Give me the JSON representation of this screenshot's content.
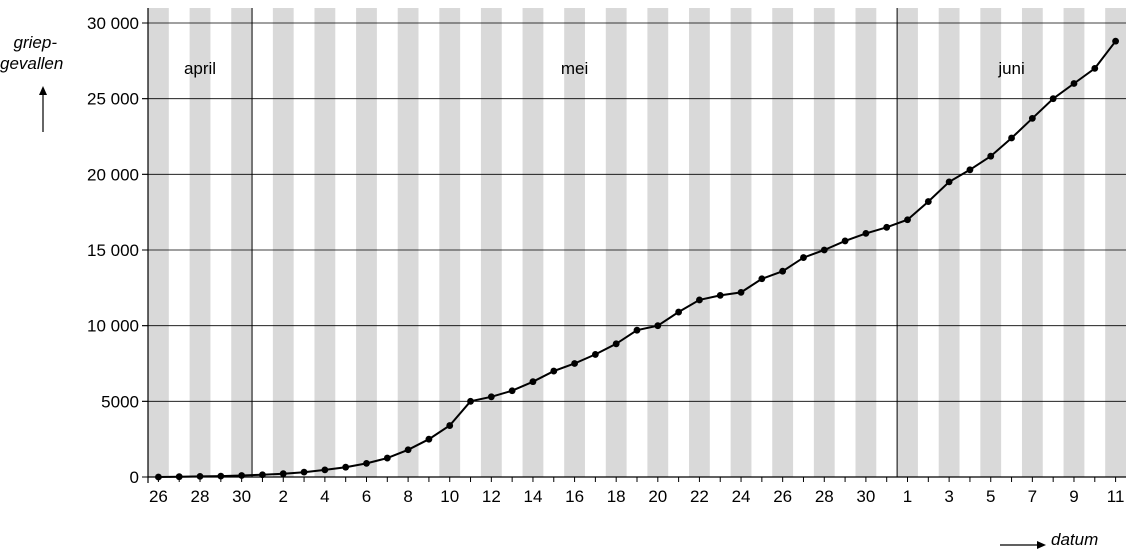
{
  "chart_data": {
    "type": "line",
    "ylabel": "griep-gevallen",
    "ylabel_line1": "griep-",
    "ylabel_line2": "gevallen",
    "xlabel": "datum",
    "ylim": [
      0,
      30000
    ],
    "yticks": [
      0,
      5000,
      10000,
      15000,
      20000,
      25000,
      30000
    ],
    "ytick_labels": [
      "0",
      "5000",
      "10 000",
      "15 000",
      "20 000",
      "25 000",
      "30 000"
    ],
    "months": [
      "april",
      "mei",
      "juni"
    ],
    "x": [
      "26",
      "27",
      "28",
      "29",
      "30",
      "1",
      "2",
      "3",
      "4",
      "5",
      "6",
      "7",
      "8",
      "9",
      "10",
      "11",
      "12",
      "13",
      "14",
      "15",
      "16",
      "17",
      "18",
      "19",
      "20",
      "21",
      "22",
      "23",
      "24",
      "25",
      "26",
      "27",
      "28",
      "29",
      "30",
      "31",
      "1",
      "2",
      "3",
      "4",
      "5",
      "6",
      "7",
      "8",
      "9",
      "10",
      "11"
    ],
    "xtick_labels": [
      "26",
      "28",
      "30",
      "2",
      "4",
      "6",
      "8",
      "10",
      "12",
      "14",
      "16",
      "18",
      "20",
      "22",
      "24",
      "26",
      "28",
      "30",
      "1",
      "3",
      "5",
      "7",
      "9",
      "11"
    ],
    "series": [
      {
        "values": [
          0,
          20,
          40,
          60,
          100,
          150,
          220,
          320,
          470,
          650,
          900,
          1250,
          1800,
          2500,
          3400,
          5000,
          5300,
          5700,
          6300,
          7000,
          7500,
          8100,
          8800,
          9700,
          10000,
          10900,
          11700,
          12000,
          12200,
          13100,
          13600,
          14500,
          15000,
          15600,
          16100,
          16500,
          17000,
          18200,
          19500,
          20300,
          21200,
          22400,
          23700,
          25000,
          26000,
          27000,
          28800
        ]
      }
    ],
    "grid": true
  }
}
